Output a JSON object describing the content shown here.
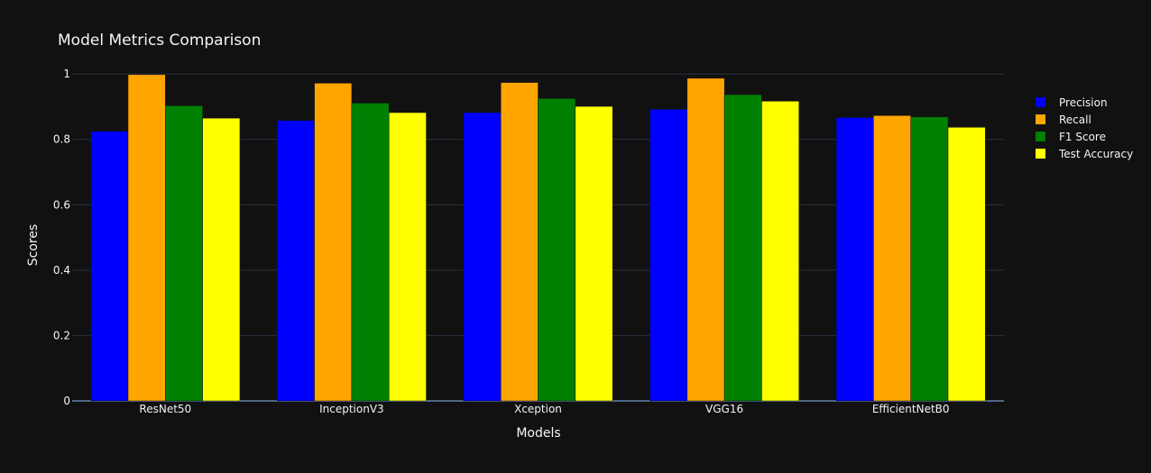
{
  "chart_data": {
    "type": "bar",
    "title": "Model Metrics Comparison",
    "xlabel": "Models",
    "ylabel": "Scores",
    "ylim": [
      0,
      1.05
    ],
    "yticks": [
      0,
      0.2,
      0.4,
      0.6,
      0.8,
      1
    ],
    "ytick_labels": [
      "0",
      "0.2",
      "0.4",
      "0.6",
      "0.8",
      "1"
    ],
    "grid": true,
    "legend_position": "right",
    "categories": [
      "ResNet50",
      "InceptionV3",
      "Xception",
      "VGG16",
      "EfficientNetB0"
    ],
    "series": [
      {
        "name": "Precision",
        "color": "#0000ff",
        "values": [
          0.825,
          0.858,
          0.882,
          0.892,
          0.867
        ]
      },
      {
        "name": "Recall",
        "color": "#ffa500",
        "values": [
          0.998,
          0.972,
          0.974,
          0.987,
          0.873
        ]
      },
      {
        "name": "F1 Score",
        "color": "#008000",
        "values": [
          0.903,
          0.911,
          0.925,
          0.937,
          0.869
        ]
      },
      {
        "name": "Test Accuracy",
        "color": "#ffff00",
        "values": [
          0.865,
          0.882,
          0.901,
          0.917,
          0.837
        ]
      }
    ]
  }
}
